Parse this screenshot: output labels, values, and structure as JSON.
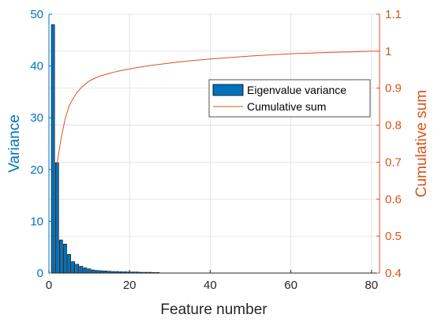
{
  "colors": {
    "left_axis": "#0072BD",
    "right_axis": "#D95319",
    "bar_fill": "#0072BD",
    "bar_edge": "#000000",
    "grid": "#DFDFDF",
    "x_axis": "#262626"
  },
  "chart_data": {
    "type": "bar",
    "title": "",
    "xlabel": "Feature number",
    "ylabel": "Variance",
    "ylabel_right": "Cumulative sum",
    "xlim": [
      0,
      82
    ],
    "ylim": [
      0,
      50
    ],
    "ylim_right": [
      0.4,
      1.1
    ],
    "x_ticks": [
      "0",
      "20",
      "40",
      "60",
      "80"
    ],
    "y_ticks": [
      "0",
      "10",
      "20",
      "30",
      "40",
      "50"
    ],
    "y_ticks_right": [
      "0.4",
      "0.5",
      "0.6",
      "0.7",
      "0.8",
      "0.9",
      "1",
      "1.1"
    ],
    "grid": true,
    "legend_position": "top-right",
    "series": [
      {
        "name": "Eigenvalue variance",
        "type": "bar",
        "axis": "left",
        "x": [
          1,
          2,
          3,
          4,
          5,
          6,
          7,
          8,
          9,
          10,
          11,
          12,
          13,
          14,
          15,
          16,
          17,
          18,
          19,
          20,
          21,
          22,
          23,
          24,
          25,
          26,
          27
        ],
        "values": [
          48.0,
          21.3,
          6.4,
          5.6,
          3.6,
          2.2,
          1.7,
          1.3,
          1.0,
          0.8,
          0.6,
          0.5,
          0.45,
          0.4,
          0.35,
          0.3,
          0.3,
          0.25,
          0.25,
          0.2,
          0.2,
          0.2,
          0.15,
          0.15,
          0.15,
          0.1,
          0.1
        ]
      },
      {
        "name": "Cumulative sum",
        "type": "line",
        "axis": "right",
        "x": [
          2,
          3,
          4,
          5,
          6,
          7,
          8,
          9,
          10,
          11,
          12,
          13,
          14,
          15,
          16,
          18,
          20,
          22,
          25,
          30,
          35,
          40,
          45,
          50,
          55,
          60,
          65,
          70,
          75,
          80,
          82
        ],
        "values": [
          0.695,
          0.763,
          0.816,
          0.852,
          0.872,
          0.889,
          0.901,
          0.911,
          0.919,
          0.925,
          0.93,
          0.934,
          0.937,
          0.94,
          0.943,
          0.948,
          0.952,
          0.956,
          0.961,
          0.968,
          0.974,
          0.979,
          0.983,
          0.987,
          0.99,
          0.993,
          0.995,
          0.997,
          0.998,
          1.0,
          1.0
        ]
      }
    ]
  }
}
